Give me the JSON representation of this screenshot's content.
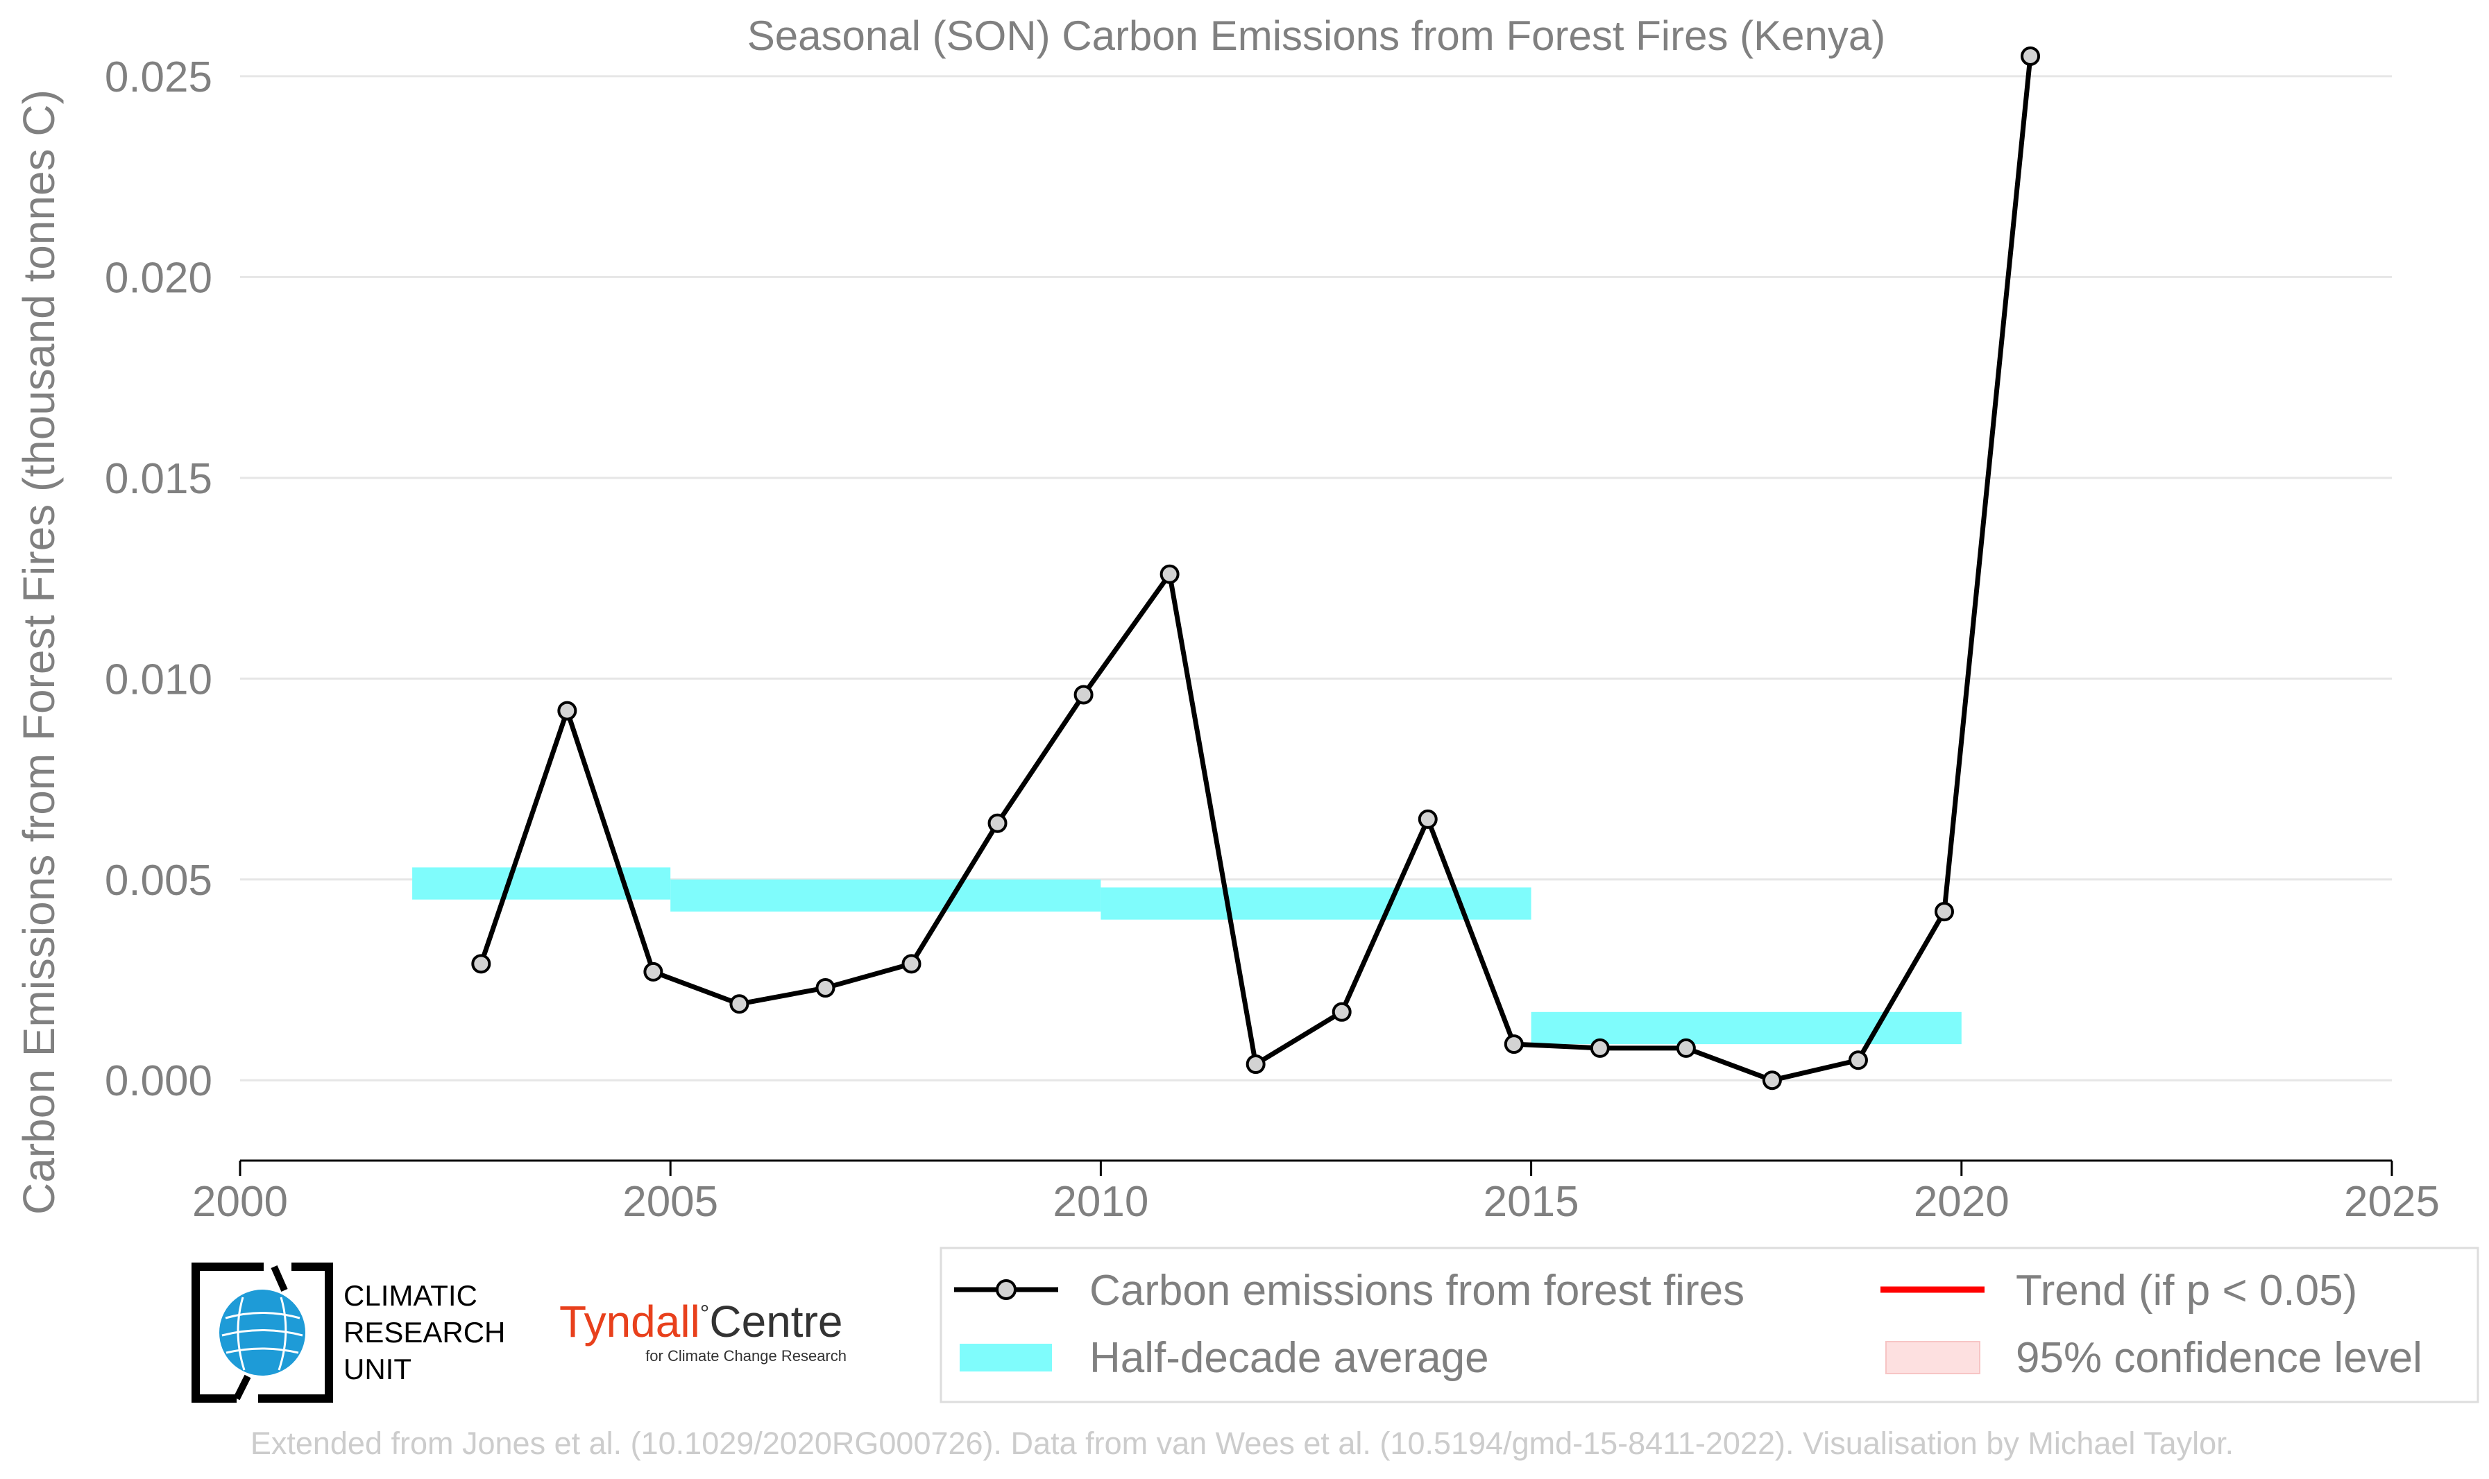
{
  "chart_data": {
    "type": "line",
    "title": "Seasonal (SON) Carbon Emissions from Forest Fires (Kenya)",
    "xlabel": "",
    "ylabel": "Carbon Emissions from Forest Fires (thousand tonnes C)",
    "xlim": [
      2000,
      2025
    ],
    "ylim": [
      -0.002,
      0.026
    ],
    "x_ticks": [
      2000,
      2005,
      2010,
      2015,
      2020,
      2025
    ],
    "x_tick_labels": [
      "2000",
      "2005",
      "2010",
      "2015",
      "2020",
      "2025"
    ],
    "y_ticks": [
      0.0,
      0.005,
      0.01,
      0.015,
      0.02,
      0.025
    ],
    "y_tick_labels": [
      "0.000",
      "0.005",
      "0.010",
      "0.015",
      "0.020",
      "0.025"
    ],
    "grid": "horizontal",
    "legend_position": "bottom",
    "series": [
      {
        "name": "Carbon emissions from forest fires",
        "color": "#000000",
        "marker_fill": "#d3d3d3",
        "x": [
          2003,
          2004,
          2005,
          2006,
          2007,
          2008,
          2009,
          2010,
          2011,
          2012,
          2013,
          2014,
          2015,
          2016,
          2017,
          2018,
          2019,
          2020,
          2021
        ],
        "y": [
          0.0029,
          0.0092,
          0.0027,
          0.0019,
          0.0023,
          0.0029,
          0.0064,
          0.0096,
          0.0126,
          0.0004,
          0.0017,
          0.0065,
          0.0009,
          0.0008,
          0.0008,
          0.0,
          0.0005,
          0.0042,
          0.0255
        ]
      }
    ],
    "half_decade_average": {
      "name": "Half-decade average",
      "color": "#7ffcfc",
      "segments": [
        {
          "x_start": 2002,
          "x_end": 2005,
          "y": 0.0049
        },
        {
          "x_start": 2005,
          "x_end": 2010,
          "y": 0.0046
        },
        {
          "x_start": 2010,
          "x_end": 2015,
          "y": 0.0044
        },
        {
          "x_start": 2015,
          "x_end": 2020,
          "y": 0.0013
        }
      ]
    },
    "legend": [
      {
        "label": "Carbon emissions from forest fires",
        "type": "line-marker",
        "color": "#000000"
      },
      {
        "label": "Trend (if p < 0.05)",
        "type": "line",
        "color": "#ff0000"
      },
      {
        "label": "Half-decade average",
        "type": "band",
        "color": "#7ffcfc"
      },
      {
        "label": "95% confidence level",
        "type": "band",
        "color": "#fde0e0"
      }
    ]
  },
  "logos": {
    "cru": {
      "line1": "CLIMATIC",
      "line2": "RESEARCH",
      "line3": "UNIT",
      "icon": "globe-icon",
      "color": "#1e9bd7"
    },
    "tyndall": {
      "name_part1": "Tyndall",
      "degree": "°",
      "name_part2": "Centre",
      "sub": "for Climate Change Research",
      "accent": "#e8401c"
    }
  },
  "credit": "Extended from Jones et al. (10.1029/2020RG000726). Data from van Wees et al. (10.5194/gmd-15-8411-2022). Visualisation by Michael Taylor."
}
